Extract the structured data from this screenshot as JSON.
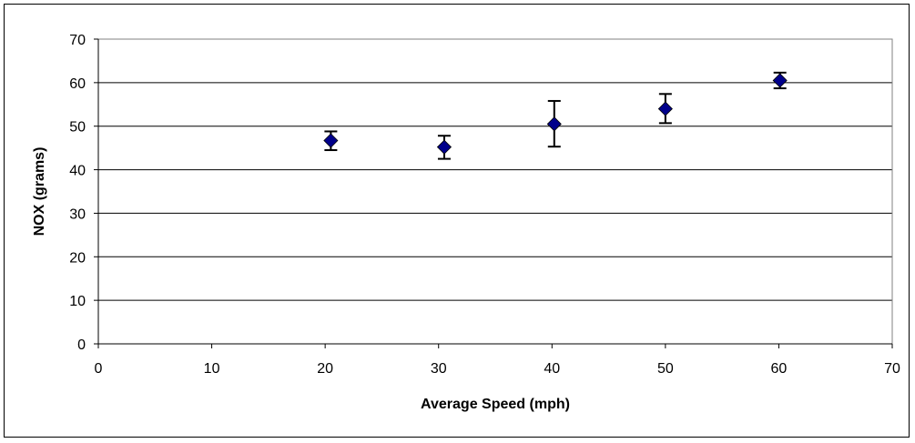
{
  "chart_data": {
    "type": "scatter",
    "xlabel": "Average Speed (mph)",
    "ylabel": "NOX (grams)",
    "xlim": [
      0,
      70
    ],
    "ylim": [
      0,
      70
    ],
    "x_ticks": [
      "0",
      "10",
      "20",
      "30",
      "40",
      "50",
      "60",
      "70"
    ],
    "y_ticks": [
      "0",
      "10",
      "20",
      "30",
      "40",
      "50",
      "60",
      "70"
    ],
    "grid": "horizontal",
    "legend": "none",
    "points": [
      {
        "x": 20.5,
        "y": 46.7,
        "err_low": 44.5,
        "err_high": 48.8
      },
      {
        "x": 30.5,
        "y": 45.2,
        "err_low": 42.5,
        "err_high": 47.8
      },
      {
        "x": 40.2,
        "y": 50.5,
        "err_low": 45.3,
        "err_high": 55.8
      },
      {
        "x": 50.0,
        "y": 54.0,
        "err_low": 50.7,
        "err_high": 57.4
      },
      {
        "x": 60.1,
        "y": 60.5,
        "err_low": 58.7,
        "err_high": 62.3
      }
    ],
    "marker_color": "#00008B"
  }
}
